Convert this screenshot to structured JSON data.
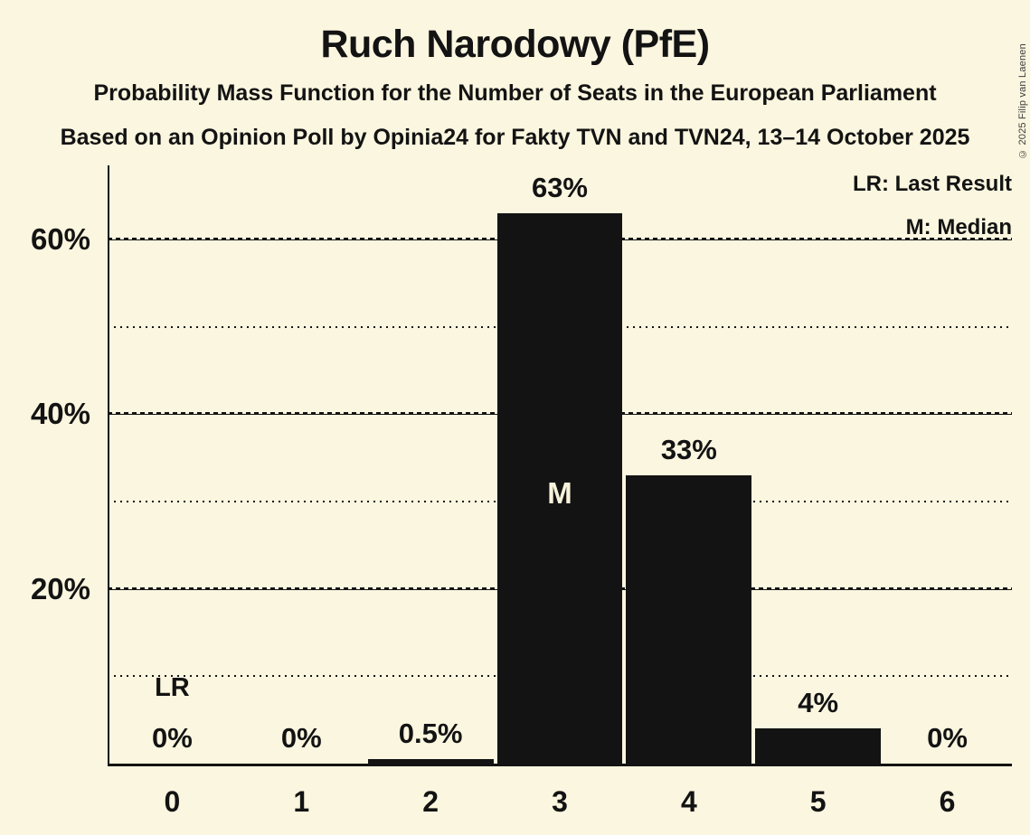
{
  "meta": {
    "copyright": "© 2025 Filip van Laenen"
  },
  "header": {
    "title": "Ruch Narodowy (PfE)",
    "subtitle1": "Probability Mass Function for the Number of Seats in the European Parliament",
    "subtitle2": "Based on an Opinion Poll by Opinia24 for Fakty TVN and TVN24, 13–14 October 2025"
  },
  "legend": {
    "lr": "LR: Last Result",
    "m": "M: Median"
  },
  "chart_data": {
    "type": "bar",
    "title": "Ruch Narodowy (PfE)",
    "xlabel": "",
    "ylabel": "",
    "categories": [
      "0",
      "1",
      "2",
      "3",
      "4",
      "5",
      "6"
    ],
    "values": [
      0,
      0,
      0.5,
      63,
      33,
      4,
      0
    ],
    "bar_labels": [
      "0%",
      "0%",
      "0.5%",
      "63%",
      "33%",
      "4%",
      "0%"
    ],
    "y_major_ticks": [
      20,
      40,
      60
    ],
    "y_major_tick_labels": [
      "20%",
      "40%",
      "60%"
    ],
    "y_minor_gridlines": [
      10,
      30,
      50
    ],
    "ylim": [
      0,
      68.5
    ],
    "grid": true,
    "legend_position": "top-right",
    "markers": {
      "last_result": {
        "category_index": 0,
        "label": "LR"
      },
      "median": {
        "category_index": 3,
        "label": "M"
      }
    },
    "colors": {
      "background": "#fbf6df",
      "bar": "#131313",
      "text": "#131313",
      "median_label": "#f8f3db"
    }
  }
}
